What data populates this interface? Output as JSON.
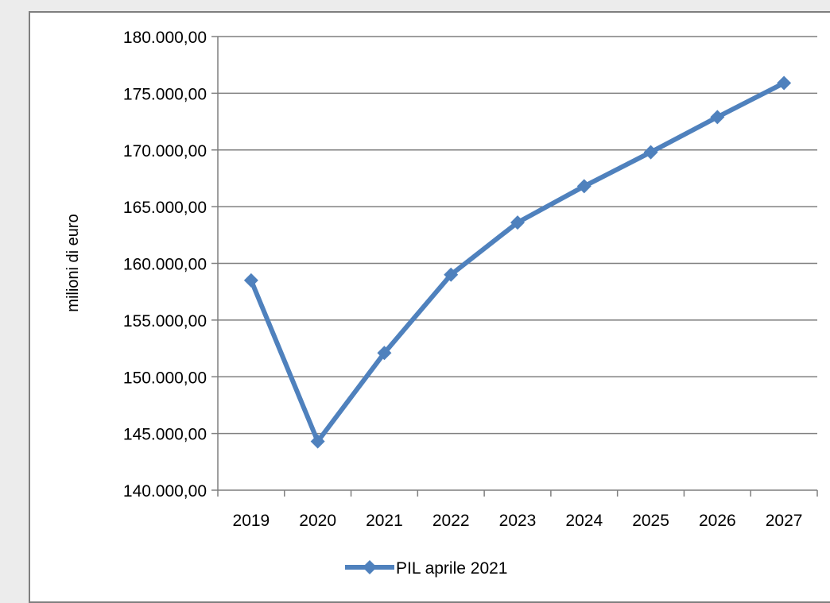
{
  "chart_data": {
    "type": "line",
    "title": "",
    "xlabel": "",
    "ylabel": "milioni di euro",
    "categories": [
      "2019",
      "2020",
      "2021",
      "2022",
      "2023",
      "2024",
      "2025",
      "2026",
      "2027"
    ],
    "series": [
      {
        "name": "PIL aprile 2021",
        "color": "#4f81bd",
        "marker": "diamond",
        "values": [
          158500,
          144300,
          152100,
          159000,
          163600,
          166800,
          169800,
          172900,
          175900
        ]
      }
    ],
    "ylim": [
      140000,
      180000
    ],
    "y_ticks": [
      "140.000,00",
      "145.000,00",
      "150.000,00",
      "155.000,00",
      "160.000,00",
      "165.000,00",
      "170.000,00",
      "175.000,00",
      "180.000,00"
    ],
    "y_tick_values": [
      140000,
      145000,
      150000,
      155000,
      160000,
      165000,
      170000,
      175000,
      180000
    ],
    "grid": "horizontal",
    "legend_position": "bottom",
    "colors": {
      "series": "#4f81bd",
      "grid": "#7f7f7f",
      "axis": "#7f7f7f",
      "frame": "#7f7f7f",
      "background": "#ececec",
      "plot_background": "#ffffff"
    }
  }
}
